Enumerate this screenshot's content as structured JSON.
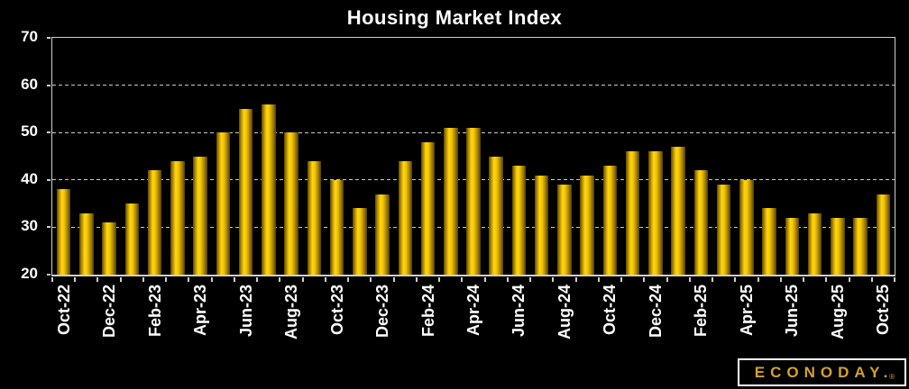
{
  "chart_data": {
    "type": "bar",
    "title": "Housing Market Index",
    "categories": [
      "Oct-22",
      "Nov-22",
      "Dec-22",
      "Jan-23",
      "Feb-23",
      "Mar-23",
      "Apr-23",
      "May-23",
      "Jun-23",
      "Jul-23",
      "Aug-23",
      "Sep-23",
      "Oct-23",
      "Nov-23",
      "Dec-23",
      "Jan-24",
      "Feb-24",
      "Mar-24",
      "Apr-24",
      "May-24",
      "Jun-24",
      "Jul-24",
      "Aug-24",
      "Sep-24",
      "Oct-24",
      "Nov-24",
      "Dec-24",
      "Jan-25",
      "Feb-25",
      "Mar-25",
      "Apr-25",
      "May-25",
      "Jun-25",
      "Jul-25",
      "Aug-25",
      "Sep-25",
      "Oct-25"
    ],
    "values": [
      38,
      33,
      31,
      35,
      42,
      44,
      45,
      50,
      55,
      56,
      50,
      44,
      40,
      34,
      37,
      44,
      48,
      51,
      51,
      45,
      43,
      41,
      39,
      41,
      43,
      46,
      46,
      47,
      42,
      39,
      40,
      34,
      32,
      33,
      32,
      32,
      37
    ],
    "x_tick_labels": [
      "Oct-22",
      "Dec-22",
      "Feb-23",
      "Apr-23",
      "Jun-23",
      "Aug-23",
      "Oct-23",
      "Dec-23",
      "Feb-24",
      "Apr-24",
      "Jun-24",
      "Aug-24",
      "Oct-24",
      "Dec-24",
      "Feb-25",
      "Apr-25",
      "Jun-25",
      "Aug-25",
      "Oct-25"
    ],
    "x_label_interval": 2,
    "xlabel": "",
    "ylabel": "",
    "ylim": [
      20,
      70
    ],
    "y_ticks": [
      20,
      30,
      40,
      50,
      60,
      70
    ],
    "grid": "horizontal dashed",
    "legend": "none",
    "x_label_rotation": -90,
    "colors": {
      "background": "#000000",
      "bar_center": "#FFD70E",
      "bar_edge": "#5C4700",
      "grid_line": "#C9C9C9",
      "axis_line": "#CFCFCF",
      "text": "#FFFFFF"
    }
  },
  "branding": {
    "logo_text": "ECONODAY.",
    "registered_mark": "®",
    "logo_color": "#D4A229"
  }
}
